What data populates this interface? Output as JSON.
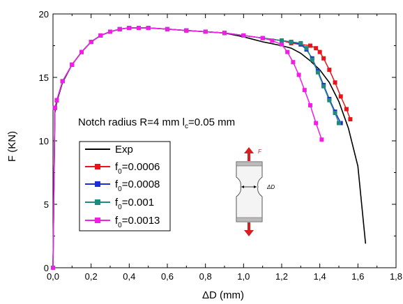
{
  "chart_data": {
    "type": "line",
    "xlabel": "ΔD (mm)",
    "ylabel": "F (KN)",
    "xlim": [
      0,
      1.8
    ],
    "ylim": [
      0,
      20
    ],
    "xticks": [
      "0,0",
      "0,2",
      "0,4",
      "0,6",
      "0,8",
      "1,0",
      "1,2",
      "1,4",
      "1,6",
      "1,8"
    ],
    "yticks": [
      "0",
      "5",
      "10",
      "15",
      "20"
    ],
    "annotation": {
      "text": "Notch radius R=4 mm  l",
      "sub": "c",
      "tail": "=0.05 mm"
    },
    "legend": {
      "placement": "center-left"
    },
    "series": [
      {
        "name": "Exp",
        "name_main": "Exp",
        "name_sub": "",
        "name_tail": "",
        "color": "#000000",
        "marker": false,
        "x": [
          0,
          0.01,
          0.02,
          0.05,
          0.1,
          0.15,
          0.2,
          0.25,
          0.3,
          0.35,
          0.4,
          0.45,
          0.5,
          0.6,
          0.7,
          0.8,
          0.9,
          1.0,
          1.1,
          1.2,
          1.25,
          1.3,
          1.35,
          1.4,
          1.45,
          1.5,
          1.55,
          1.6,
          1.64
        ],
        "y": [
          0,
          12.2,
          13.1,
          14.6,
          16.0,
          17.0,
          17.8,
          18.3,
          18.6,
          18.8,
          18.9,
          18.9,
          18.9,
          18.8,
          18.7,
          18.6,
          18.5,
          18.2,
          17.8,
          17.5,
          17.3,
          16.9,
          16.3,
          15.6,
          14.6,
          13.1,
          11.0,
          8.0,
          1.9
        ]
      },
      {
        "name": "f0=0.0006",
        "name_main": "f",
        "name_sub": "0",
        "name_tail": "=0.0006",
        "color": "#e8141a",
        "marker": true,
        "x": [
          0,
          0.01,
          0.02,
          0.05,
          0.1,
          0.15,
          0.2,
          0.25,
          0.3,
          0.35,
          0.4,
          0.45,
          0.5,
          0.6,
          0.7,
          0.8,
          0.9,
          1.0,
          1.1,
          1.2,
          1.25,
          1.3,
          1.35,
          1.38,
          1.4,
          1.42,
          1.45,
          1.48,
          1.51,
          1.54,
          1.56
        ],
        "y": [
          0,
          12.6,
          13.2,
          14.7,
          16.0,
          17.0,
          17.8,
          18.3,
          18.6,
          18.8,
          18.9,
          18.9,
          18.9,
          18.8,
          18.7,
          18.6,
          18.5,
          18.3,
          18.1,
          17.9,
          17.7,
          17.6,
          17.5,
          17.3,
          17.0,
          16.5,
          15.6,
          14.6,
          13.5,
          12.5,
          11.7
        ]
      },
      {
        "name": "f0=0.0008",
        "name_main": "f",
        "name_sub": "0",
        "name_tail": "=0.0008",
        "color": "#1c2fd6",
        "marker": true,
        "x": [
          0,
          0.01,
          0.02,
          0.05,
          0.1,
          0.15,
          0.2,
          0.25,
          0.3,
          0.35,
          0.4,
          0.45,
          0.5,
          0.6,
          0.7,
          0.8,
          0.9,
          1.0,
          1.1,
          1.2,
          1.25,
          1.3,
          1.33,
          1.36,
          1.39,
          1.42,
          1.45,
          1.48,
          1.51
        ],
        "y": [
          0,
          12.6,
          13.2,
          14.7,
          16.0,
          17.0,
          17.8,
          18.3,
          18.6,
          18.8,
          18.9,
          18.9,
          18.9,
          18.8,
          18.7,
          18.6,
          18.5,
          18.3,
          18.1,
          17.9,
          17.8,
          17.6,
          17.2,
          16.5,
          15.5,
          14.4,
          13.3,
          12.3,
          11.4
        ]
      },
      {
        "name": "f0=0.001",
        "name_main": "f",
        "name_sub": "0",
        "name_tail": "=0.001",
        "color": "#1f8a80",
        "marker": true,
        "x": [
          0,
          0.01,
          0.02,
          0.05,
          0.1,
          0.15,
          0.2,
          0.25,
          0.3,
          0.35,
          0.4,
          0.45,
          0.5,
          0.6,
          0.7,
          0.8,
          0.9,
          1.0,
          1.1,
          1.2,
          1.25,
          1.3,
          1.33,
          1.36,
          1.39,
          1.42,
          1.45,
          1.48,
          1.5
        ],
        "y": [
          0,
          12.6,
          13.2,
          14.7,
          16.0,
          17.0,
          17.8,
          18.3,
          18.6,
          18.8,
          18.9,
          18.9,
          18.9,
          18.8,
          18.7,
          18.6,
          18.5,
          18.3,
          18.1,
          17.9,
          17.8,
          17.7,
          17.3,
          16.4,
          15.4,
          14.3,
          13.2,
          12.2,
          11.4
        ]
      },
      {
        "name": "f0=0.0013",
        "name_main": "f",
        "name_sub": "0",
        "name_tail": "=0.0013",
        "color": "#f21ee6",
        "marker": true,
        "x": [
          0,
          0.01,
          0.02,
          0.05,
          0.1,
          0.15,
          0.2,
          0.25,
          0.3,
          0.35,
          0.4,
          0.45,
          0.5,
          0.6,
          0.7,
          0.8,
          0.9,
          1.0,
          1.1,
          1.15,
          1.2,
          1.23,
          1.26,
          1.29,
          1.32,
          1.35,
          1.38,
          1.41
        ],
        "y": [
          0,
          12.6,
          13.2,
          14.7,
          16.0,
          17.0,
          17.8,
          18.3,
          18.6,
          18.8,
          18.9,
          18.9,
          18.9,
          18.8,
          18.7,
          18.6,
          18.5,
          18.3,
          18.1,
          17.9,
          17.6,
          17.0,
          16.2,
          15.2,
          14.0,
          12.8,
          11.4,
          10.1
        ]
      }
    ],
    "inset": {
      "force_label": "F",
      "gap_label": "ΔD"
    }
  }
}
